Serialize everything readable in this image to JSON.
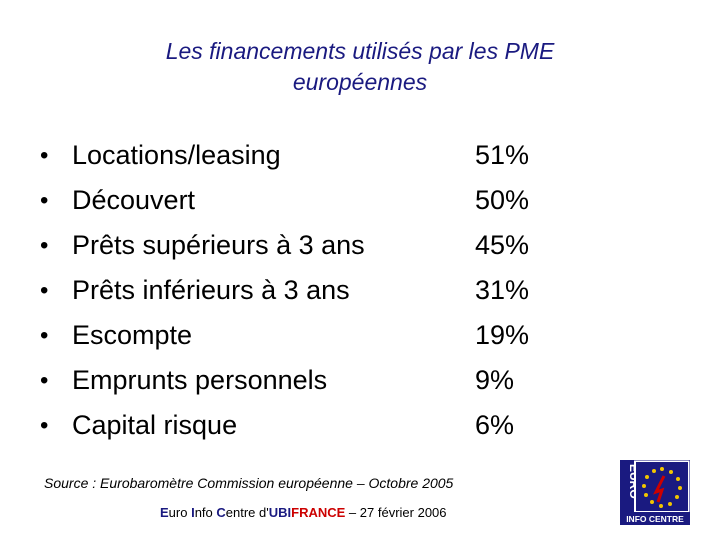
{
  "slide": {
    "title_line1": "Les financements utilisés par les PME",
    "title_line2": "européennes",
    "bullet_glyph": "•",
    "items": [
      {
        "label": "Locations/leasing",
        "value": "51%"
      },
      {
        "label": "Découvert",
        "value": "50%"
      },
      {
        "label": "Prêts supérieurs à 3 ans",
        "value": "45%"
      },
      {
        "label": "Prêts inférieurs à 3 ans",
        "value": "31%"
      },
      {
        "label": "Escompte",
        "value": "19%"
      },
      {
        "label": "Emprunts personnels",
        "value": "9%"
      },
      {
        "label": "Capital risque",
        "value": "6%"
      }
    ],
    "source": "Source : Eurobaromètre Commission européenne – Octobre 2005"
  },
  "footer": {
    "e": "E",
    "uro": "uro ",
    "i": "I",
    "nfo": "nfo ",
    "c": "C",
    "entre": "entre d'",
    "ubi": "UBI",
    "france": "FRANCE",
    "dash": " – ",
    "date": "27 février 2006"
  },
  "logo": {
    "vertical_text": "EURO",
    "bottom_text": "INFO CENTRE",
    "colors": {
      "navy": "#1a1a80",
      "star": "#f2c500",
      "accent": "#cc0000"
    }
  }
}
